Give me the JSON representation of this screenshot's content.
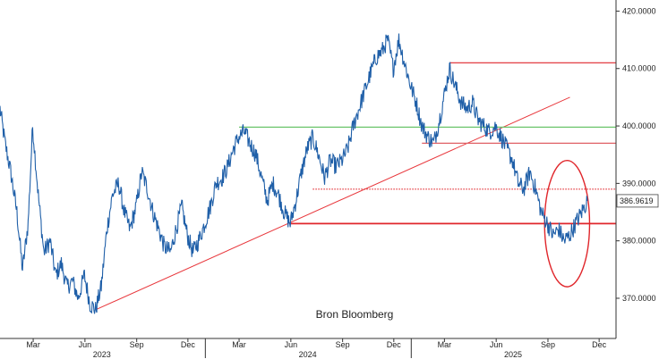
{
  "chart_data": {
    "type": "line",
    "title": "",
    "xlabel": "",
    "ylabel": "",
    "source_text": "Bron Bloomberg",
    "x_range": [
      "2023-01-01",
      "2025-12-31"
    ],
    "ylim": [
      363,
      421
    ],
    "y_ticks": [
      "420.0000",
      "410.0000",
      "400.0000",
      "390.0000",
      "380.0000",
      "370.0000"
    ],
    "month_ticks": [
      {
        "label": "Mar",
        "date": "2023-03-01"
      },
      {
        "label": "Jun",
        "date": "2023-06-01"
      },
      {
        "label": "Sep",
        "date": "2023-09-01"
      },
      {
        "label": "Dec",
        "date": "2023-12-01"
      },
      {
        "label": "Mar",
        "date": "2024-03-01"
      },
      {
        "label": "Jun",
        "date": "2024-06-01"
      },
      {
        "label": "Sep",
        "date": "2024-09-01"
      },
      {
        "label": "Dec",
        "date": "2024-12-01"
      },
      {
        "label": "Mar",
        "date": "2025-03-01"
      },
      {
        "label": "Jun",
        "date": "2025-06-01"
      },
      {
        "label": "Sep",
        "date": "2025-09-01"
      },
      {
        "label": "Dec",
        "date": "2025-12-01"
      }
    ],
    "year_labels": [
      {
        "label": "2023",
        "date": "2023-07-01"
      },
      {
        "label": "2024",
        "date": "2024-07-01"
      },
      {
        "label": "2025",
        "date": "2025-07-01"
      }
    ],
    "last_value": "386.9619",
    "last_value_num": 386.96,
    "series": [
      {
        "color": "#1f5fa8",
        "points": [
          [
            "2023-01-01",
            403
          ],
          [
            "2023-01-10",
            397
          ],
          [
            "2023-01-20",
            392
          ],
          [
            "2023-01-31",
            385
          ],
          [
            "2023-02-10",
            375
          ],
          [
            "2023-02-20",
            383
          ],
          [
            "2023-02-28",
            400
          ],
          [
            "2023-03-10",
            388
          ],
          [
            "2023-03-20",
            378
          ],
          [
            "2023-03-31",
            380
          ],
          [
            "2023-04-10",
            374
          ],
          [
            "2023-04-20",
            376
          ],
          [
            "2023-04-30",
            372
          ],
          [
            "2023-05-10",
            373
          ],
          [
            "2023-05-20",
            370
          ],
          [
            "2023-05-31",
            374
          ],
          [
            "2023-06-10",
            369
          ],
          [
            "2023-06-20",
            368
          ],
          [
            "2023-06-30",
            372
          ],
          [
            "2023-07-10",
            382
          ],
          [
            "2023-07-20",
            388
          ],
          [
            "2023-07-31",
            390
          ],
          [
            "2023-08-10",
            385
          ],
          [
            "2023-08-20",
            382
          ],
          [
            "2023-08-31",
            386
          ],
          [
            "2023-09-10",
            392
          ],
          [
            "2023-09-20",
            389
          ],
          [
            "2023-09-30",
            385
          ],
          [
            "2023-10-10",
            382
          ],
          [
            "2023-10-20",
            379
          ],
          [
            "2023-10-31",
            378
          ],
          [
            "2023-11-10",
            382
          ],
          [
            "2023-11-20",
            386
          ],
          [
            "2023-11-30",
            381
          ],
          [
            "2023-12-10",
            378
          ],
          [
            "2023-12-20",
            380
          ],
          [
            "2023-12-31",
            383
          ],
          [
            "2024-01-10",
            386
          ],
          [
            "2024-01-20",
            390
          ],
          [
            "2024-01-31",
            391
          ],
          [
            "2024-02-10",
            393
          ],
          [
            "2024-02-20",
            396
          ],
          [
            "2024-02-29",
            398
          ],
          [
            "2024-03-10",
            399
          ],
          [
            "2024-03-20",
            397
          ],
          [
            "2024-03-31",
            395
          ],
          [
            "2024-04-10",
            391
          ],
          [
            "2024-04-20",
            387
          ],
          [
            "2024-04-30",
            390
          ],
          [
            "2024-05-10",
            388
          ],
          [
            "2024-05-20",
            385
          ],
          [
            "2024-05-31",
            383
          ],
          [
            "2024-06-10",
            387
          ],
          [
            "2024-06-20",
            392
          ],
          [
            "2024-06-30",
            396
          ],
          [
            "2024-07-10",
            398
          ],
          [
            "2024-07-20",
            395
          ],
          [
            "2024-07-31",
            391
          ],
          [
            "2024-08-10",
            394
          ],
          [
            "2024-08-20",
            393
          ],
          [
            "2024-08-31",
            394
          ],
          [
            "2024-09-10",
            396
          ],
          [
            "2024-09-20",
            400
          ],
          [
            "2024-09-30",
            403
          ],
          [
            "2024-10-10",
            406
          ],
          [
            "2024-10-20",
            409
          ],
          [
            "2024-10-31",
            412
          ],
          [
            "2024-11-10",
            413
          ],
          [
            "2024-11-20",
            415
          ],
          [
            "2024-11-30",
            410
          ],
          [
            "2024-12-10",
            415
          ],
          [
            "2024-12-20",
            411
          ],
          [
            "2024-12-31",
            407
          ],
          [
            "2025-01-10",
            404
          ],
          [
            "2025-01-20",
            400
          ],
          [
            "2025-01-31",
            398
          ],
          [
            "2025-02-10",
            397
          ],
          [
            "2025-02-20",
            401
          ],
          [
            "2025-02-28",
            405
          ],
          [
            "2025-03-10",
            410
          ],
          [
            "2025-03-20",
            407
          ],
          [
            "2025-03-31",
            404
          ],
          [
            "2025-04-10",
            403
          ],
          [
            "2025-04-20",
            404
          ],
          [
            "2025-04-30",
            401
          ],
          [
            "2025-05-10",
            400
          ],
          [
            "2025-05-20",
            399
          ],
          [
            "2025-05-31",
            400
          ],
          [
            "2025-06-10",
            398
          ],
          [
            "2025-06-20",
            396
          ],
          [
            "2025-06-30",
            394
          ],
          [
            "2025-07-10",
            390
          ],
          [
            "2025-07-20",
            389
          ],
          [
            "2025-07-31",
            392
          ],
          [
            "2025-08-10",
            389
          ],
          [
            "2025-08-20",
            385
          ],
          [
            "2025-08-31",
            383
          ],
          [
            "2025-09-10",
            381
          ],
          [
            "2025-09-20",
            382
          ],
          [
            "2025-09-30",
            380
          ],
          [
            "2025-10-10",
            381
          ],
          [
            "2025-10-20",
            383
          ],
          [
            "2025-10-31",
            385
          ],
          [
            "2025-11-10",
            386.96
          ]
        ]
      }
    ],
    "annotations": [
      {
        "type": "trendline",
        "color": "#e8363b",
        "from": [
          "2023-06-20",
          368
        ],
        "to": [
          "2025-10-10",
          405
        ]
      },
      {
        "type": "hline",
        "color": "#6ac46a",
        "y": 399.8,
        "x_from": "2024-03-01",
        "x_to": "2025-12-31"
      },
      {
        "type": "hline",
        "color": "#e0262b",
        "y": 411,
        "x_from": "2025-03-10",
        "x_to": "2025-12-31"
      },
      {
        "type": "hline",
        "color": "#e06065",
        "y": 397,
        "x_from": "2025-01-20",
        "x_to": "2025-12-31"
      },
      {
        "type": "hline_dotted",
        "color": "#e0262b",
        "y": 389,
        "x_from": "2024-07-10",
        "x_to": "2025-12-31"
      },
      {
        "type": "hline",
        "color": "#e0262b",
        "y": 383,
        "x_from": "2024-05-31",
        "x_to": "2025-12-31"
      },
      {
        "type": "ellipse",
        "color": "#e0262b",
        "cx": "2025-10-05",
        "cy": 383,
        "rx_days": 40,
        "ry": 11
      }
    ]
  }
}
